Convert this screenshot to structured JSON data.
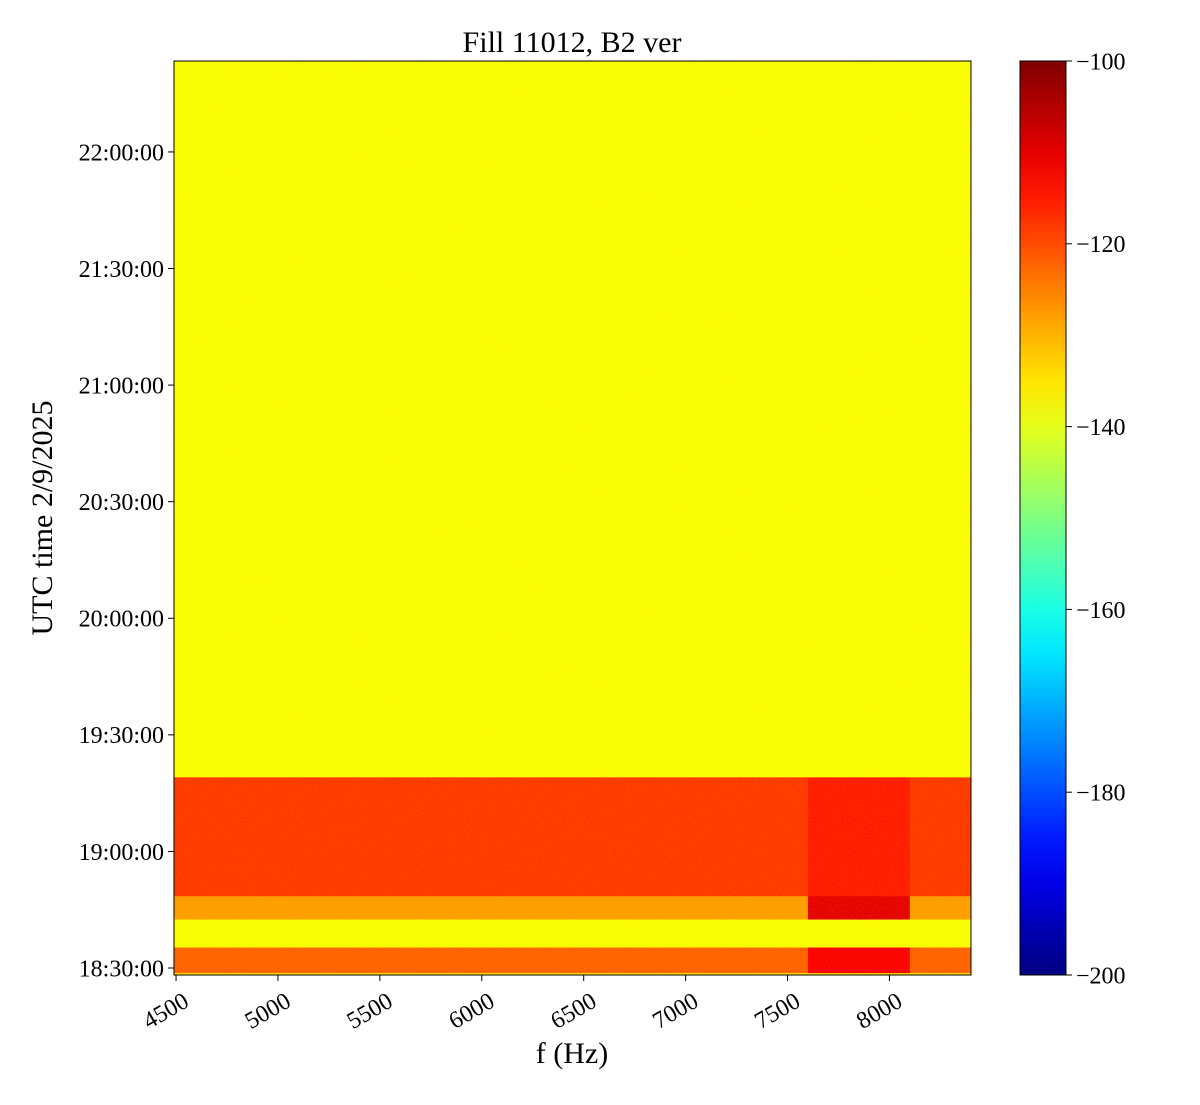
{
  "chart_data": {
    "type": "heatmap",
    "title": "Fill 11012, B2 ver",
    "xlabel": "f (Hz)",
    "ylabel": "UTC time 2/9/2025",
    "x_edges": [
      4490,
      5000,
      5500,
      6000,
      6500,
      7000,
      7600,
      8100,
      8400
    ],
    "y_edges": [
      18.47,
      18.48,
      18.59,
      18.71,
      18.81,
      19.32,
      22.39
    ],
    "z": [
      [
        -136,
        -136,
        -136,
        -136,
        -136,
        -136,
        -136,
        -136
      ],
      [
        -122,
        -122,
        -122,
        -122,
        -122,
        -122,
        -112,
        -122
      ],
      [
        -138,
        -138,
        -138,
        -138,
        -138,
        -138,
        -138,
        -138
      ],
      [
        -128,
        -128,
        -128,
        -128,
        -128,
        -128,
        -110,
        -128
      ],
      [
        -118,
        -118,
        -118,
        -118,
        -118,
        -118,
        -115,
        -118
      ],
      [
        -138,
        -138,
        -138,
        -138,
        -138,
        -138,
        -138,
        -138
      ]
    ],
    "xlim": [
      4490,
      8400
    ],
    "xticks": [
      4500,
      5000,
      5500,
      6000,
      6500,
      7000,
      7500,
      8000
    ],
    "ylim": [
      18.47,
      22.39
    ],
    "yticks": [
      {
        "value": 18.5,
        "label": "18:30:00"
      },
      {
        "value": 19.0,
        "label": "19:00:00"
      },
      {
        "value": 19.5,
        "label": "19:30:00"
      },
      {
        "value": 20.0,
        "label": "20:00:00"
      },
      {
        "value": 20.5,
        "label": "20:30:00"
      },
      {
        "value": 21.0,
        "label": "21:00:00"
      },
      {
        "value": 21.5,
        "label": "21:30:00"
      },
      {
        "value": 22.0,
        "label": "22:00:00"
      }
    ],
    "colormap": "jet",
    "clim": [
      -200,
      -100
    ],
    "cticks": [
      {
        "value": -200,
        "label": "−200"
      },
      {
        "value": -180,
        "label": "−180"
      },
      {
        "value": -160,
        "label": "−160"
      },
      {
        "value": -140,
        "label": "−140"
      },
      {
        "value": -120,
        "label": "−120"
      },
      {
        "value": -100,
        "label": "−100"
      }
    ]
  }
}
